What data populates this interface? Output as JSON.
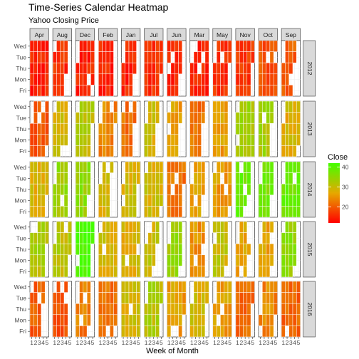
{
  "chart_data": {
    "type": "heatmap",
    "title": "Time-Series Calendar Heatmap",
    "subtitle": "Yahoo Closing Price",
    "xlabel": "Week of Month",
    "month_panels": [
      "Apr",
      "Aug",
      "Dec",
      "Feb",
      "Jan",
      "Jul",
      "Jun",
      "Mar",
      "May",
      "Nov",
      "Oct",
      "Sep"
    ],
    "year_panels": [
      "2012",
      "2013",
      "2014",
      "2015",
      "2016"
    ],
    "y_ticks": [
      "Wed",
      "Tue",
      "Thu",
      "Mon",
      "Fri"
    ],
    "x_ticks": [
      "1",
      "2",
      "3",
      "4",
      "5"
    ],
    "legend": {
      "title": "Close",
      "ticks": [
        20,
        30,
        40
      ],
      "range": [
        12,
        42
      ],
      "low_color": "#FF0000",
      "mid_color": "#E6A800",
      "high_color": "#44FF00"
    },
    "grid": true,
    "series_levels": {
      "2012": [
        15,
        16,
        15,
        15,
        15,
        16,
        15,
        15,
        16,
        17,
        19,
        20
      ],
      "2013": [
        20,
        29,
        31,
        24,
        22,
        29,
        26,
        22,
        26,
        33,
        33,
        28
      ],
      "2014": [
        28,
        34,
        35,
        29,
        29,
        29,
        22,
        27,
        26,
        39,
        37,
        38
      ],
      "2015": [
        32,
        31,
        42,
        29,
        28,
        30,
        34,
        25,
        30,
        27,
        26,
        35
      ],
      "2016": [
        20,
        19,
        23,
        22,
        29,
        32,
        26,
        29,
        26,
        21,
        24,
        21
      ]
    }
  }
}
